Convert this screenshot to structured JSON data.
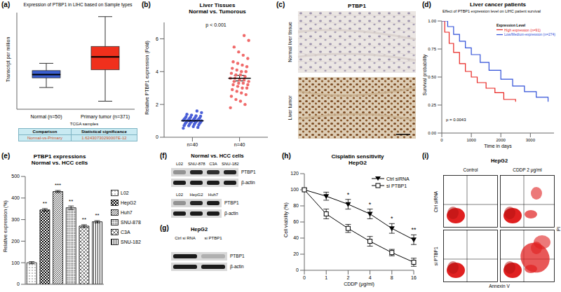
{
  "chart_data": [
    {
      "label": "(a)",
      "type": "box",
      "title": "Expression of PTBP1 in LIHC based on Sample types",
      "y_label": "Transcript per million",
      "categories": [
        "Normal (n=50)",
        "Primary tumor (n=371)"
      ],
      "stats": [
        {
          "min": 2.7,
          "q1": 3.9,
          "median": 4.3,
          "q3": 4.8,
          "max": 5.7
        },
        {
          "min": 1.0,
          "q1": 4.9,
          "median": 6.5,
          "q3": 7.8,
          "max": 11.5
        }
      ],
      "colors": [
        "#3b5fd0",
        "#f0301c"
      ],
      "ylim": [
        0,
        12
      ],
      "tick_labels": "x",
      "table": {
        "title": "TCGA samples",
        "header": [
          "Comparison",
          "Statistical significance"
        ],
        "rows": [
          [
            "Normal-vs-Primary",
            "1.62430730290007E-12"
          ]
        ]
      }
    },
    {
      "label": "(b)",
      "type": "strip",
      "title": "Liver Tissues",
      "subtitle": "Normal vs. Tumorous",
      "y_label": "Relative PTBP1 expression (Fold)",
      "categories": [
        "n=40",
        "n=40"
      ],
      "values": [
        [
          0.55,
          0.6,
          0.65,
          0.7,
          0.72,
          0.75,
          0.78,
          0.8,
          0.82,
          0.85,
          0.87,
          0.9,
          0.9,
          0.92,
          0.95,
          0.95,
          0.97,
          1.0,
          1.0,
          1.0,
          1.02,
          1.03,
          1.05,
          1.05,
          1.08,
          1.1,
          1.1,
          1.12,
          1.15,
          1.15,
          1.18,
          1.2,
          1.22,
          1.25,
          1.28,
          1.3,
          1.35,
          1.4,
          1.5,
          1.6
        ],
        [
          1.8,
          2.0,
          2.2,
          2.3,
          2.5,
          2.6,
          2.7,
          2.8,
          2.9,
          3.0,
          3.0,
          3.1,
          3.2,
          3.2,
          3.3,
          3.3,
          3.4,
          3.4,
          3.5,
          3.5,
          3.6,
          3.6,
          3.7,
          3.8,
          3.8,
          3.9,
          4.0,
          4.0,
          4.1,
          4.2,
          4.3,
          4.4,
          4.5,
          4.6,
          4.8,
          5.0,
          5.2,
          5.5,
          5.9,
          6.2
        ]
      ],
      "colors": [
        "#4a5fd8",
        "#f06a6a"
      ],
      "mean": [
        1.0,
        3.6
      ],
      "sem": [
        0.04,
        0.17
      ],
      "annotations": [
        "p < 0.001"
      ],
      "ylim": [
        0,
        7
      ],
      "yticks": [
        0,
        2,
        4,
        6
      ]
    },
    {
      "label": "(d)",
      "type": "line",
      "title": "Liver cancer patients",
      "subtitle": "Effect of PTBP1 expression level on LIHC patient survival",
      "x_label": "Time in days",
      "y_label": "Survival probability",
      "legend_title": "Expression Level",
      "series": [
        {
          "name": "High expression (n=91)",
          "color": "#e8231f",
          "line_style": "step",
          "x": [
            0,
            100,
            250,
            400,
            600,
            800,
            1000,
            1200,
            1500,
            1800,
            2100,
            2500
          ],
          "values": [
            1,
            0.9,
            0.8,
            0.72,
            0.62,
            0.55,
            0.5,
            0.45,
            0.4,
            0.36,
            0.3,
            0.28
          ]
        },
        {
          "name": "Low/Medium-expression (n=274)",
          "color": "#2f4fd8",
          "line_style": "step",
          "x": [
            0,
            200,
            400,
            600,
            800,
            1000,
            1300,
            1600,
            2000,
            2400,
            2800,
            3200,
            3600
          ],
          "values": [
            1,
            0.95,
            0.88,
            0.82,
            0.76,
            0.7,
            0.63,
            0.56,
            0.48,
            0.42,
            0.37,
            0.32,
            0.28
          ]
        }
      ],
      "xlim": [
        0,
        3800
      ],
      "xticks": [
        0,
        1000,
        2000,
        3000
      ],
      "ylim": [
        0,
        1
      ],
      "yticks": [
        {
          "value": 0,
          "label": "0.00"
        },
        0.25,
        {
          "value": 0.5,
          "label": "0.50"
        },
        0.75,
        {
          "value": 1,
          "label": "1.00"
        }
      ],
      "annotations": [
        "p = 0.0043"
      ],
      "legend": "top right"
    },
    {
      "label": "(e)",
      "type": "bar",
      "title": "PTBP1 expressions",
      "subtitle": "Normal vs. HCC cells",
      "y_label": "Relative expression (%)",
      "categories": [
        "L02",
        "HepG2",
        "Huh7",
        "SNU-878",
        "C3A",
        "SNU-182"
      ],
      "values": [
        100,
        345,
        430,
        355,
        270,
        290
      ],
      "errors": [
        5,
        6,
        5,
        8,
        6,
        5
      ],
      "annotations": [
        null,
        "**",
        "***",
        "**",
        "**",
        "**"
      ],
      "color": "#000000",
      "ylim": [
        0,
        500
      ],
      "yticks": [
        0,
        100,
        200,
        300,
        400,
        500
      ],
      "legend": "right",
      "tick_labels": "y"
    },
    {
      "label": "(h)",
      "type": "line",
      "title": "Cisplatin sensitivity",
      "subtitle": "HepG2",
      "x_label": "CDDP (μg/ml)",
      "y_label": "Cell viability (%)",
      "categories": [
        0,
        1,
        2,
        4,
        8,
        16
      ],
      "series": [
        {
          "name": "Ctrl siRNA",
          "color": "#000000",
          "marker": "triangle-down",
          "values": [
            100,
            92,
            82,
            70,
            52,
            38
          ],
          "errors": [
            0,
            5,
            6,
            6,
            6,
            6
          ]
        },
        {
          "name": "si PTBP1",
          "color": "#000000",
          "marker": "open-square",
          "values": [
            100,
            70,
            52,
            36,
            22,
            10
          ],
          "errors": [
            0,
            6,
            5,
            6,
            4,
            5
          ]
        }
      ],
      "annotations": [
        null,
        null,
        "*",
        "*",
        "*",
        "**"
      ],
      "ylim": [
        0,
        120
      ],
      "yticks": [
        0,
        20,
        40,
        60,
        80,
        100,
        120
      ],
      "legend": "top right"
    }
  ],
  "images": {
    "c": {
      "label": "(c)",
      "title": "PTBP1",
      "rows": [
        "Normal liver tissue",
        "Liver tumor"
      ]
    },
    "f": {
      "label": "(f)",
      "title": "Normal vs. HCC cells",
      "blots": [
        {
          "lanes": [
            "L02",
            "SNU-878",
            "C3A",
            "SNU-182"
          ],
          "bands": [
            "PTBP1",
            "β-actin"
          ],
          "intensity": [
            [
              0.35,
              0.9,
              0.85,
              0.9
            ],
            [
              0.95,
              0.95,
              0.95,
              0.95
            ]
          ]
        },
        {
          "lanes": [
            "L02",
            "HepG2",
            "Huh7"
          ],
          "bands": [
            "PTBP1",
            "β-actin"
          ],
          "intensity": [
            [
              0.35,
              0.9,
              0.95
            ],
            [
              0.95,
              0.95,
              0.95
            ]
          ]
        }
      ]
    },
    "g": {
      "label": "(g)",
      "title": "HepG2",
      "lanes": [
        "Ctrl si RNA",
        "si PTBP1"
      ],
      "bands": [
        "PTBP1",
        "β-actin"
      ],
      "intensity": [
        [
          0.95,
          0.2
        ],
        [
          0.95,
          0.95
        ]
      ]
    },
    "i": {
      "label": "(i)",
      "title": "HepG2",
      "columns": [
        "Control",
        "CDDP 2 μg/ml"
      ],
      "rows": [
        "Ctrl siRNA",
        "si PTBP1"
      ],
      "x_label": "Annexin V",
      "y_label": "PI"
    }
  }
}
